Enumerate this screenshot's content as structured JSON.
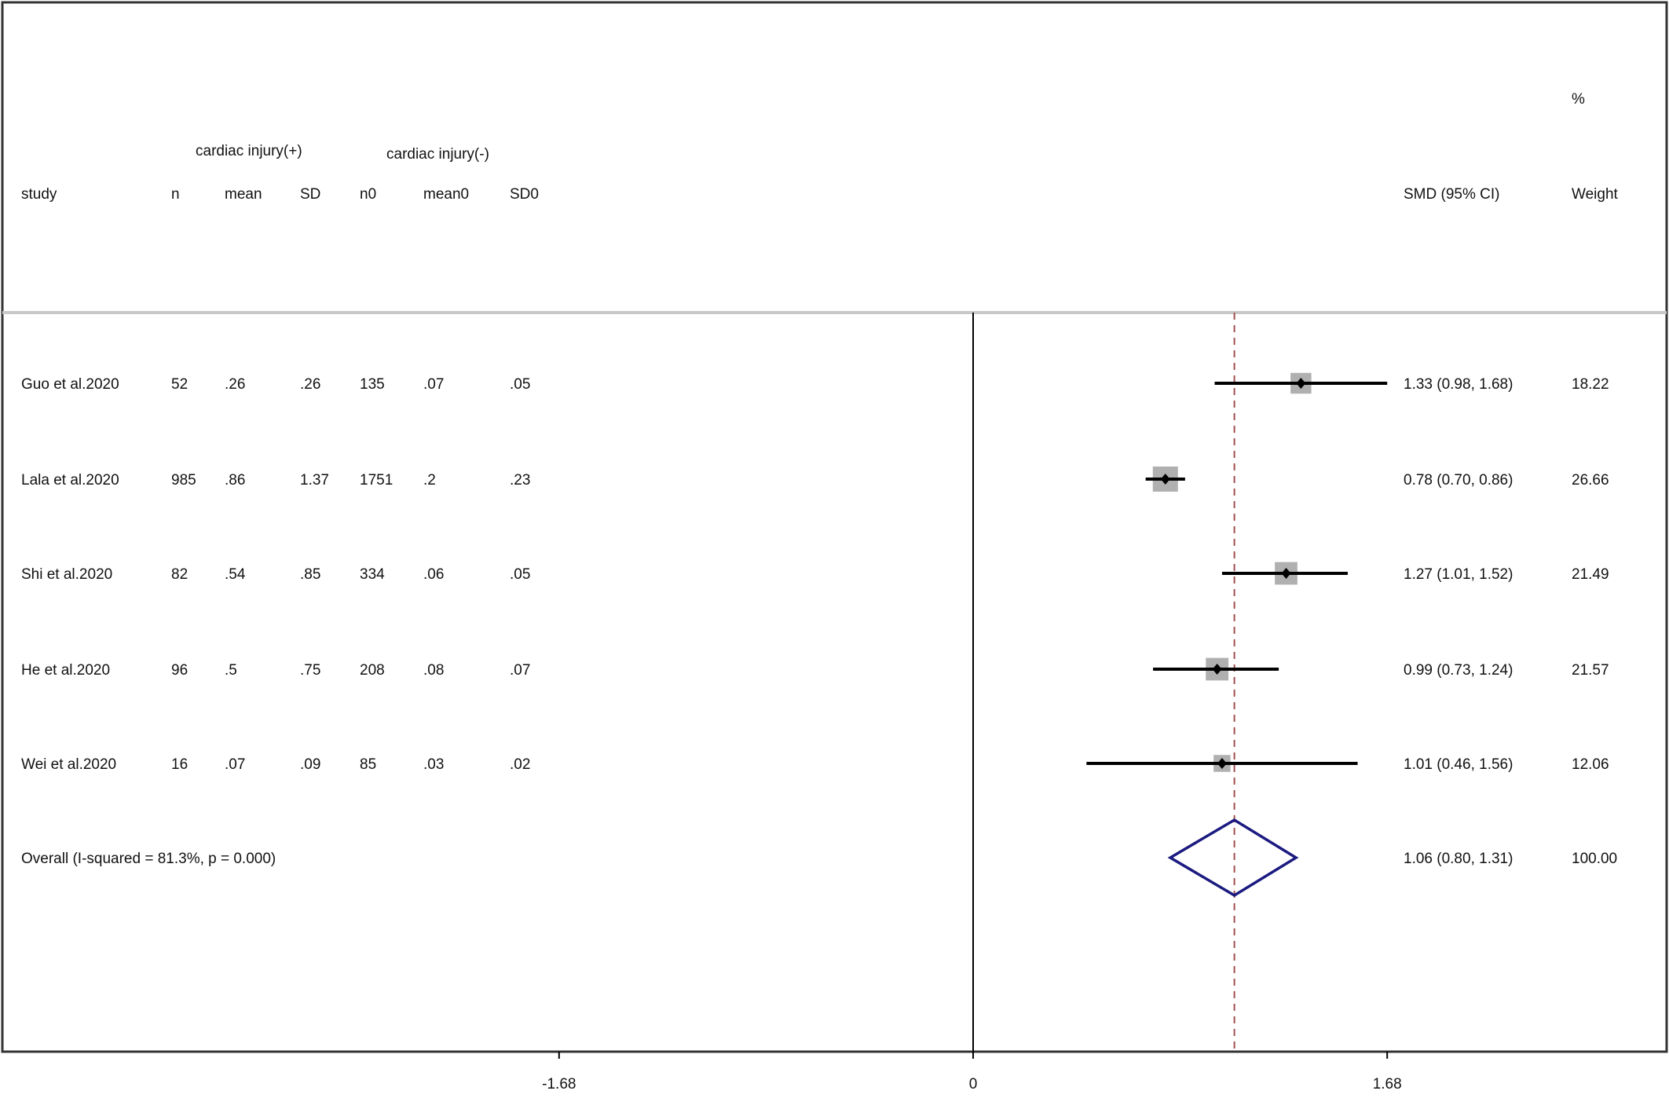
{
  "chart_data": {
    "type": "forest",
    "header": {
      "group1": "cardiac injury(+)",
      "group0": "cardiac injury(-)",
      "columns": [
        "study",
        "n",
        "mean",
        "SD",
        "n0",
        "mean0",
        "SD0"
      ],
      "effect_col": "SMD (95% CI)",
      "weight_pct": "%",
      "weight_col": "Weight"
    },
    "studies": [
      {
        "study": "Guo et al.2020",
        "n": "52",
        "mean": ".26",
        "SD": ".26",
        "n0": "135",
        "mean0": ".07",
        "SD0": ".05",
        "smd": 1.33,
        "lo": 0.98,
        "hi": 1.68,
        "ci_text": "1.33 (0.98, 1.68)",
        "weight": "18.22"
      },
      {
        "study": "Lala et al.2020",
        "n": "985",
        "mean": ".86",
        "SD": "1.37",
        "n0": "1751",
        "mean0": ".2",
        "SD0": ".23",
        "smd": 0.78,
        "lo": 0.7,
        "hi": 0.86,
        "ci_text": "0.78 (0.70, 0.86)",
        "weight": "26.66"
      },
      {
        "study": "Shi et al.2020",
        "n": "82",
        "mean": ".54",
        "SD": ".85",
        "n0": "334",
        "mean0": ".06",
        "SD0": ".05",
        "smd": 1.27,
        "lo": 1.01,
        "hi": 1.52,
        "ci_text": "1.27 (1.01, 1.52)",
        "weight": "21.49"
      },
      {
        "study": "He et al.2020",
        "n": "96",
        "mean": ".5",
        "SD": ".75",
        "n0": "208",
        "mean0": ".08",
        "SD0": ".07",
        "smd": 0.99,
        "lo": 0.73,
        "hi": 1.24,
        "ci_text": "0.99 (0.73, 1.24)",
        "weight": "21.57"
      },
      {
        "study": "Wei et al.2020",
        "n": "16",
        "mean": ".07",
        "SD": ".09",
        "n0": "85",
        "mean0": ".03",
        "SD0": ".02",
        "smd": 1.01,
        "lo": 0.46,
        "hi": 1.56,
        "ci_text": "1.01 (0.46, 1.56)",
        "weight": "12.06"
      }
    ],
    "overall": {
      "label": "Overall  (I-squared = 81.3%, p = 0.000)",
      "smd": 1.06,
      "lo": 0.8,
      "hi": 1.31,
      "ci_text": "1.06 (0.80, 1.31)",
      "weight": "100.00"
    },
    "x_ticks": [
      -1.68,
      0,
      1.68
    ],
    "x_tick_labels": [
      "-1.68",
      "0",
      "1.68"
    ],
    "colors": {
      "overall_diamond": "#1a1a80",
      "overall_line": "#a05050",
      "box": "#b0b0b0",
      "ci": "#000000"
    }
  }
}
